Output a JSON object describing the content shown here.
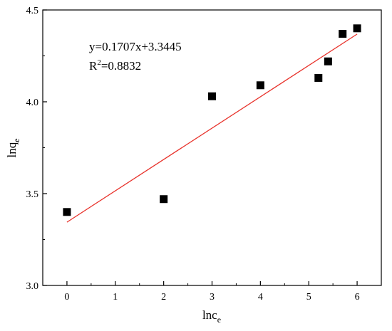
{
  "chart_data": {
    "type": "scatter",
    "xlabel": "lnc",
    "xlabel_sub": "e",
    "ylabel": "lnq",
    "ylabel_sub": "e",
    "xlim": [
      -0.5,
      6.5
    ],
    "ylim": [
      3.0,
      4.5
    ],
    "xticks": [
      "0",
      "1",
      "2",
      "3",
      "4",
      "5",
      "6"
    ],
    "yticks": [
      "3.0",
      "3.5",
      "4.0",
      "4.5"
    ],
    "grid": false,
    "series": [
      {
        "points": [
          {
            "x": 0.0,
            "y": 3.4
          },
          {
            "x": 2.0,
            "y": 3.47
          },
          {
            "x": 3.0,
            "y": 4.03
          },
          {
            "x": 4.0,
            "y": 4.09
          },
          {
            "x": 5.2,
            "y": 4.13
          },
          {
            "x": 5.4,
            "y": 4.22
          },
          {
            "x": 5.7,
            "y": 4.37
          },
          {
            "x": 6.0,
            "y": 4.4
          }
        ],
        "marker": "square",
        "color": "#000000"
      }
    ],
    "fit": {
      "slope": 0.1707,
      "intercept": 3.3445,
      "x_range": [
        0,
        6
      ],
      "color": "#e8322b"
    },
    "annotations": {
      "equation": "y=0.1707x+3.3445",
      "r2_prefix": "R",
      "r2_sup": "2",
      "r2_value": "=0.8832"
    }
  }
}
